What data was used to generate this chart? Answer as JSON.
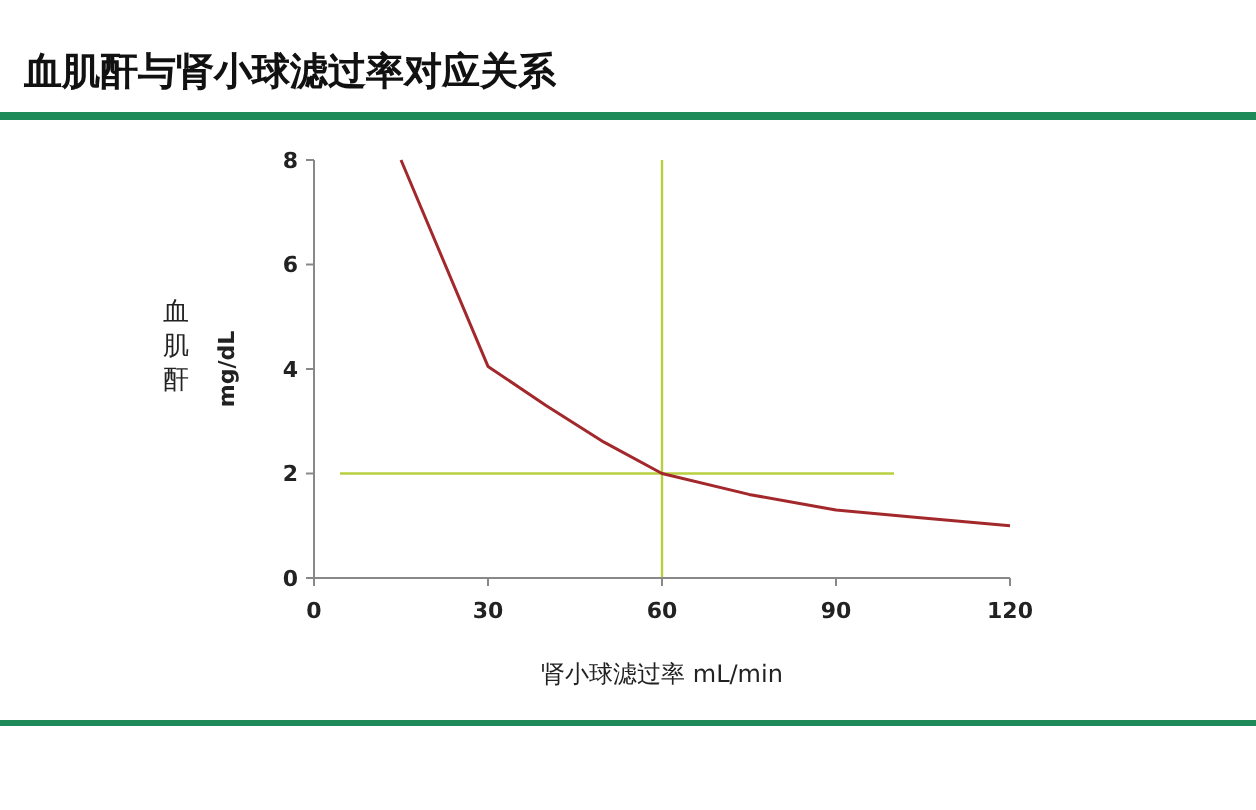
{
  "chart_data": {
    "type": "line",
    "title": "血肌酐与肾小球滤过率对应关系",
    "xlabel": "肾小球滤过率 mL/min",
    "ylabel": "血肌酐 mg/dL",
    "x": [
      15,
      30,
      40,
      50,
      60,
      75,
      90,
      105,
      120
    ],
    "series": [
      {
        "color": "#a3282c",
        "values": [
          8,
          4.05,
          3.3,
          2.6,
          2,
          1.6,
          1.3,
          1.15,
          1
        ]
      }
    ],
    "xlim": [
      0,
      120
    ],
    "ylim": [
      0,
      8
    ],
    "xticks": [
      0,
      30,
      60,
      90,
      120
    ],
    "yticks": [
      0,
      2,
      4,
      6,
      8
    ],
    "grid": false,
    "marker": "none",
    "line_style": "solid",
    "ref_lines": [
      {
        "axis": "x",
        "value": 60,
        "color": "#b8d040"
      },
      {
        "axis": "y",
        "value": 2,
        "color": "#b8d040"
      }
    ]
  }
}
